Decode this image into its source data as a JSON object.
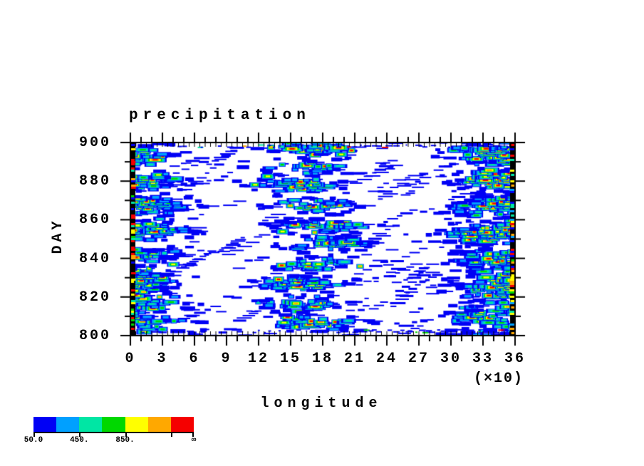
{
  "window": {
    "background": "#ffffff"
  },
  "chart_data": {
    "type": "heatmap",
    "title": "precipitation",
    "xlabel": "longitude",
    "x_unit_note": "(×10)",
    "ylabel": "DAY",
    "x_tick_labels": [
      "0",
      "3",
      "6",
      "9",
      "12",
      "15",
      "18",
      "21",
      "24",
      "27",
      "30",
      "33",
      "36"
    ],
    "xlim_display": [
      0,
      36
    ],
    "xlim_data_degrees": [
      0,
      360
    ],
    "y_tick_labels": [
      "900",
      "880",
      "860",
      "840",
      "820",
      "800"
    ],
    "ylim": [
      800,
      900
    ],
    "y_major_step": 20,
    "y_minor_step": 10,
    "grid": false,
    "legend_position": "bottom-left-colorbar",
    "contour_levels": [
      50,
      250,
      450,
      650,
      850,
      1050,
      1250
    ],
    "palette": [
      "#0000f5",
      "#00a0ff",
      "#00e6a4",
      "#00d800",
      "#ffff00",
      "#ffa800",
      "#f50000"
    ],
    "colorbar": {
      "labels": [
        {
          "text": "50.0",
          "boundary": 0
        },
        {
          "text": "450.",
          "boundary": 2
        },
        {
          "text": "850.",
          "boundary": 4
        },
        {
          "text": "∞",
          "boundary": 7
        }
      ],
      "tick_boundaries": [
        0,
        2,
        4,
        6,
        7
      ]
    },
    "field_model": {
      "description": "Hovmoller diagram of precipitation blobs: dense convective bands near longitudes 0-40, 140-210 and 300-360 for days 800-900, sparse west-tilted blue streak chains elsewhere, saturated dark speckled columns at both longitude edges, speck rows along top and bottom axis",
      "seed": 1337,
      "background_density": 0.045,
      "bands": [
        {
          "center": 14,
          "sigma": 26,
          "amp": 0.66,
          "drift": 8,
          "period": 55,
          "phase": 0.8,
          "clumpf": 0.5,
          "clumpp": 1.4
        },
        {
          "center": 172,
          "sigma": 27,
          "amp": 0.88,
          "drift": 16,
          "period": 60,
          "phase": 2.4,
          "clumpf": 0.62,
          "clumpp": 4.1
        },
        {
          "center": 338,
          "sigma": 27,
          "amp": 0.78,
          "drift": 9,
          "period": 50,
          "phase": 4.4,
          "clumpf": 0.45,
          "clumpp": 7.5
        }
      ],
      "edge_columns": true
    }
  }
}
